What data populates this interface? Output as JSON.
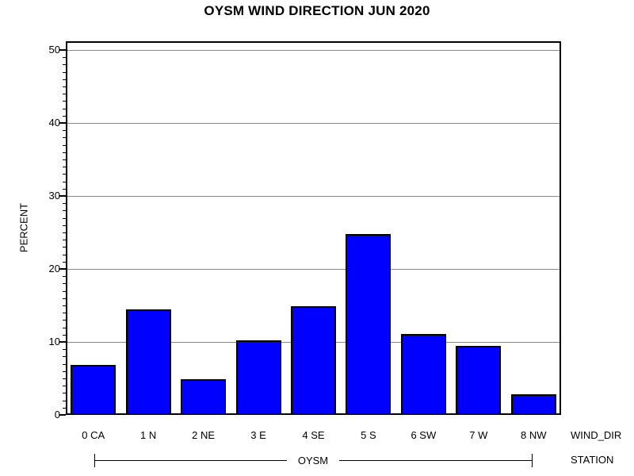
{
  "title": "OYSM WIND DIRECTION JUN 2020",
  "chart_data": {
    "type": "bar",
    "title": "OYSM WIND DIRECTION JUN 2020",
    "categories": [
      "0 CA",
      "1 N",
      "2 NE",
      "3 E",
      "4 SE",
      "5 S",
      "6 SW",
      "7 W",
      "8 NW"
    ],
    "values": [
      6.8,
      14.5,
      4.9,
      10.2,
      14.9,
      24.8,
      11.1,
      9.5,
      2.8
    ],
    "xlabel": "WIND_DIR",
    "ylabel": "PERCENT",
    "ylim": [
      0,
      50
    ],
    "yticks": [
      0,
      10,
      20,
      30,
      40,
      50
    ],
    "minor_tick_step": 1,
    "grid": "horizontal-major-only",
    "legend": "none",
    "group_label": "OYSM",
    "group_axis_label": "STATION",
    "bar_color": "#0000ff",
    "bar_border_color": "#000000",
    "grid_color": "#8a8a8a",
    "frame_color": "#000000",
    "text_color": "#000000"
  }
}
